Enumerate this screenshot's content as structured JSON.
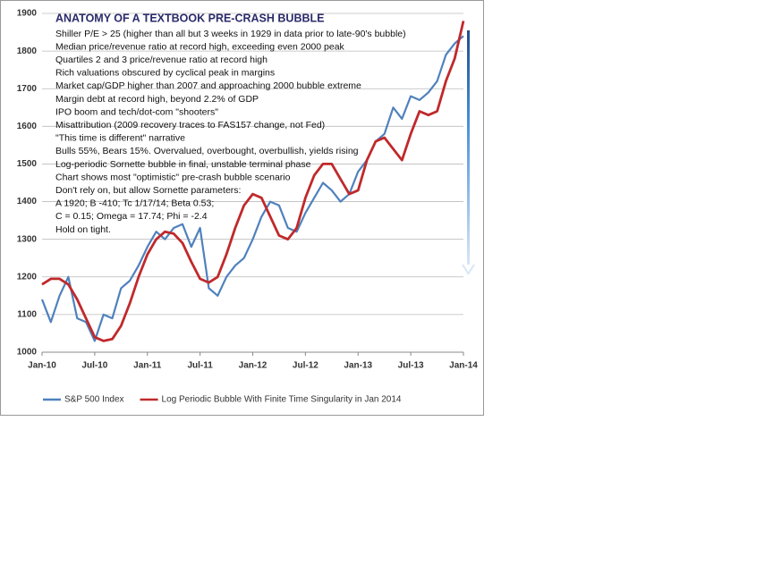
{
  "chart_data": {
    "type": "line",
    "title": "ANATOMY OF A TEXTBOOK PRE-CRASH BUBBLE",
    "annotations": [
      "Shiller P/E > 25 (higher than all but 3  weeks in 1929 in data prior to late-90's bubble)",
      "Median price/revenue ratio at record high, exceeding even 2000 peak",
      "Quartiles 2 and 3 price/revenue ratio at record high",
      "Rich valuations obscured by cyclical peak in margins",
      "Market cap/GDP higher than 2007 and approaching 2000 bubble extreme",
      "Margin debt at record high, beyond 2.2% of GDP",
      "IPO boom and tech/dot-com \"shooters\"",
      "Misattribution (2009 recovery traces to FAS157 change, not Fed)",
      "\"This time is different\" narrative",
      "Bulls 55%, Bears 15%. Overvalued, overbought, overbullish, yields rising",
      "Log-periodic Sornette bubble in final, unstable terminal phase",
      "Chart shows most \"optimistic\" pre-crash bubble scenario",
      "Don't rely on, but allow Sornette parameters:",
      "A 1920;  B -410; Tc 1/17/14;  Beta 0.53;",
      "C = 0.15; Omega = 17.74;  Phi = -2.4",
      "Hold on tight."
    ],
    "categories": [
      "Jan-10",
      null,
      null,
      null,
      null,
      null,
      "Jul-10",
      null,
      null,
      null,
      null,
      null,
      "Jan-11",
      null,
      null,
      null,
      null,
      null,
      "Jul-11",
      null,
      null,
      null,
      null,
      null,
      "Jan-12",
      null,
      null,
      null,
      null,
      null,
      "Jul-12",
      null,
      null,
      null,
      null,
      null,
      "Jan-13",
      null,
      null,
      null,
      null,
      null,
      "Jul-13",
      null,
      null,
      null,
      null,
      null,
      "Jan-14"
    ],
    "series": [
      {
        "name": "S&P 500 Index",
        "color": "#4f81bd",
        "values": [
          1140,
          1080,
          1150,
          1200,
          1090,
          1080,
          1030,
          1100,
          1090,
          1170,
          1190,
          1230,
          1280,
          1320,
          1300,
          1330,
          1340,
          1280,
          1330,
          1170,
          1150,
          1200,
          1230,
          1250,
          1300,
          1360,
          1400,
          1390,
          1330,
          1320,
          1370,
          1410,
          1450,
          1430,
          1400,
          1420,
          1480,
          1510,
          1560,
          1580,
          1650,
          1620,
          1680,
          1670,
          1690,
          1720,
          1790,
          1820,
          1840
        ]
      },
      {
        "name": "Log Periodic Bubble With Finite Time Singularity in Jan 2014",
        "color": "#c0292b",
        "values": [
          1180,
          1195,
          1195,
          1180,
          1140,
          1090,
          1040,
          1030,
          1035,
          1070,
          1130,
          1200,
          1260,
          1300,
          1320,
          1315,
          1290,
          1240,
          1195,
          1185,
          1200,
          1260,
          1330,
          1390,
          1420,
          1410,
          1360,
          1310,
          1300,
          1330,
          1410,
          1470,
          1500,
          1500,
          1460,
          1420,
          1430,
          1510,
          1560,
          1570,
          1540,
          1510,
          1580,
          1640,
          1630,
          1640,
          1720,
          1780,
          1880
        ]
      }
    ],
    "ylim": [
      1000,
      1900
    ],
    "yticks": [
      1000,
      1100,
      1200,
      1300,
      1400,
      1500,
      1600,
      1700,
      1800,
      1900
    ],
    "grid": true
  }
}
